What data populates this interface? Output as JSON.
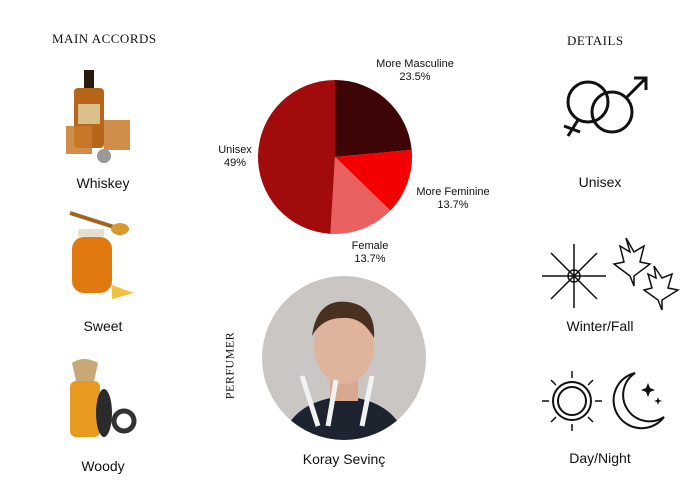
{
  "main_accords": {
    "title": "MAIN ACCORDS",
    "items": [
      {
        "label": "Whiskey",
        "icon": "whiskey-bottle-icon"
      },
      {
        "label": "Sweet",
        "icon": "honey-jar-icon"
      },
      {
        "label": "Woody",
        "icon": "woody-bottle-icon"
      }
    ]
  },
  "chart_data": {
    "type": "pie",
    "slices": [
      {
        "label": "More Masculine",
        "value": 23.5,
        "display": "23.5%",
        "color": "#3d0505"
      },
      {
        "label": "More Feminine",
        "value": 13.7,
        "display": "13.7%",
        "color": "#f50000"
      },
      {
        "label": "Female",
        "value": 13.7,
        "display": "13.7%",
        "color": "#ea6060"
      },
      {
        "label": "Unisex",
        "value": 49,
        "display": "49%",
        "color": "#a20b0b"
      }
    ]
  },
  "perfumer": {
    "heading": "PERFUMER",
    "name": "Koray Sevinç"
  },
  "details": {
    "title": "DETAILS",
    "items": [
      {
        "label": "Unisex",
        "icon": "gender-symbols-icon"
      },
      {
        "label": "Winter/Fall",
        "icon": "snowflake-maple-leaf-icon"
      },
      {
        "label": "Day/Night",
        "icon": "sun-moon-icon"
      }
    ]
  }
}
